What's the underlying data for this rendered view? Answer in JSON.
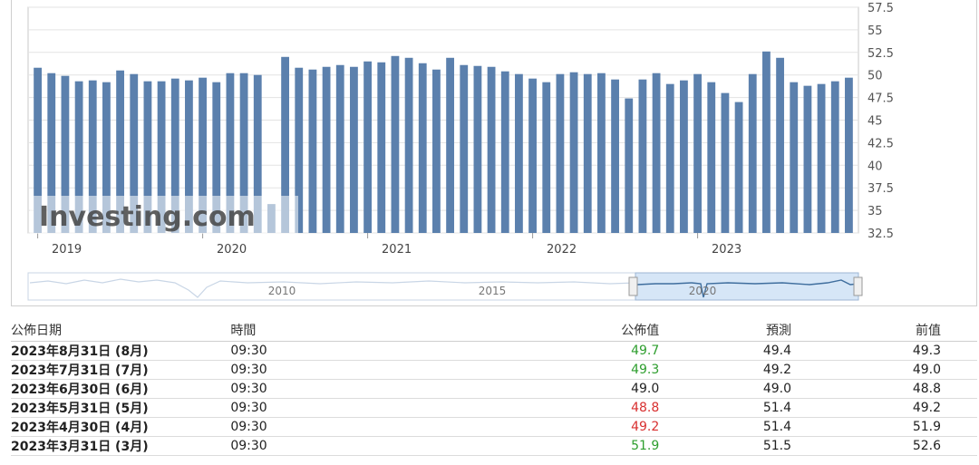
{
  "chart_data": {
    "type": "bar",
    "x_tick_labels": [
      "2019",
      "2020",
      "2021",
      "2022",
      "2023"
    ],
    "y_ticks": [
      "57.5",
      "55",
      "52.5",
      "50",
      "47.5",
      "45",
      "42.5",
      "40",
      "37.5",
      "35",
      "32.5"
    ],
    "ylim": [
      32.5,
      57.5
    ],
    "y_axis_position": "right",
    "values": [
      50.8,
      50.2,
      49.9,
      49.3,
      49.4,
      49.2,
      50.5,
      50.1,
      49.3,
      49.3,
      49.6,
      49.4,
      49.7,
      49.2,
      50.2,
      50.2,
      50.0,
      35.7,
      52.0,
      50.8,
      50.6,
      50.9,
      51.1,
      50.9,
      51.5,
      51.4,
      52.1,
      51.9,
      51.3,
      50.6,
      51.9,
      51.1,
      51.0,
      50.9,
      50.4,
      50.1,
      49.6,
      49.2,
      50.1,
      50.3,
      50.1,
      50.2,
      49.5,
      47.4,
      49.5,
      50.2,
      49.0,
      49.4,
      50.1,
      49.2,
      48.0,
      47.0,
      50.1,
      52.6,
      51.9,
      49.2,
      48.8,
      49.0,
      49.3,
      49.7
    ],
    "bar_color": "#5b80ad",
    "watermark": "Investing.com",
    "navigator": {
      "labels": [
        "2010",
        "2015",
        "2020"
      ]
    }
  },
  "table": {
    "headers": {
      "date": "公佈日期",
      "time": "時間",
      "actual": "公佈值",
      "forecast": "預測",
      "previous": "前值"
    },
    "rows": [
      {
        "date": "2023年8月31日 (8月)",
        "time": "09:30",
        "actual": "49.7",
        "forecast": "49.4",
        "previous": "49.3",
        "status": "up"
      },
      {
        "date": "2023年7月31日 (7月)",
        "time": "09:30",
        "actual": "49.3",
        "forecast": "49.2",
        "previous": "49.0",
        "status": "up"
      },
      {
        "date": "2023年6月30日 (6月)",
        "time": "09:30",
        "actual": "49.0",
        "forecast": "49.0",
        "previous": "48.8",
        "status": "flat"
      },
      {
        "date": "2023年5月31日 (5月)",
        "time": "09:30",
        "actual": "48.8",
        "forecast": "51.4",
        "previous": "49.2",
        "status": "down"
      },
      {
        "date": "2023年4月30日 (4月)",
        "time": "09:30",
        "actual": "49.2",
        "forecast": "51.4",
        "previous": "51.9",
        "status": "down"
      },
      {
        "date": "2023年3月31日 (3月)",
        "time": "09:30",
        "actual": "51.9",
        "forecast": "51.5",
        "previous": "52.6",
        "status": "up"
      }
    ]
  },
  "colors": {
    "up": "#2e9e2e",
    "down": "#d83030"
  }
}
